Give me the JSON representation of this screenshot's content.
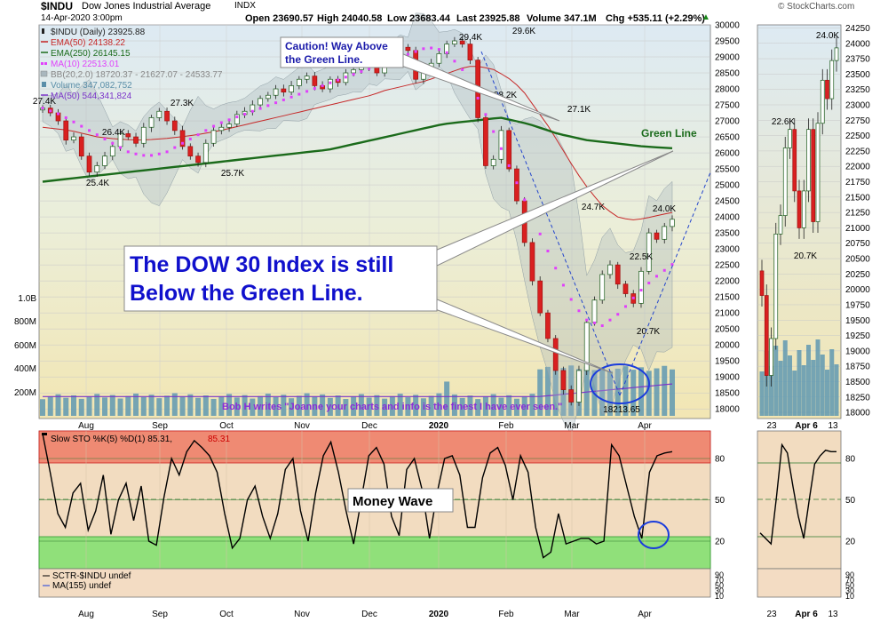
{
  "header": {
    "symbol": "$INDU",
    "name": "Dow Jones Industrial Average",
    "exchange": "INDX",
    "date": "14-Apr-2020 3:00pm",
    "open": "Open 23690.57",
    "high": "High 24040.58",
    "low": "Low 23683.44",
    "last": "Last 23925.88",
    "volume": "Volume 347.1M",
    "chg": "Chg +535.11 (+2.29%)",
    "chg_arrow": "▲",
    "brand": "© StockCharts.com"
  },
  "legend": [
    {
      "text": "$INDU (Daily) 23925.88",
      "color": "#222222",
      "swatch": "candle"
    },
    {
      "text": "EMA(50) 24138.22",
      "color": "#c62828",
      "swatch": "line"
    },
    {
      "text": "EMA(250) 26145.15",
      "color": "#1b6b1b",
      "swatch": "line"
    },
    {
      "text": "MA(10) 22513.01",
      "color": "#e040fb",
      "swatch": "dots"
    },
    {
      "text": "BB(20,2.0) 18720.37 - 21627.07 - 24533.77",
      "color": "#888888",
      "swatch": "band"
    },
    {
      "text": "Volume 347,082,752",
      "color": "#5a8ea8",
      "swatch": "bar"
    },
    {
      "text": "MA(50) 544,341,824",
      "color": "#7b35c9",
      "swatch": "line"
    }
  ],
  "chart_data": [
    {
      "type": "line",
      "title": "$INDU (Daily)",
      "y_ticks": [
        18000,
        18500,
        19000,
        19500,
        20000,
        20500,
        21000,
        21500,
        22000,
        22500,
        23000,
        23500,
        24000,
        24500,
        25000,
        25500,
        26000,
        26500,
        27000,
        27500,
        28000,
        28500,
        29000,
        29500,
        30000
      ],
      "ylim": [
        17700,
        30000
      ],
      "volume_ticks": [
        "200M",
        "400M",
        "600M",
        "800M",
        "1.0B"
      ],
      "x_labels": [
        "Aug",
        "Sep",
        "Oct",
        "Nov",
        "Dec",
        "2020",
        "Feb",
        "Mar",
        "Apr"
      ],
      "close_approx": [
        27400,
        27250,
        27000,
        26400,
        26500,
        25900,
        25400,
        25600,
        25900,
        26200,
        26600,
        26500,
        26300,
        26800,
        27100,
        27300,
        27000,
        26700,
        26200,
        25900,
        25700,
        26300,
        26700,
        26800,
        26900,
        27200,
        27300,
        27500,
        27700,
        27800,
        28000,
        27900,
        28100,
        28300,
        28400,
        28100,
        28000,
        28300,
        28200,
        28500,
        28600,
        28800,
        28700,
        28500,
        28900,
        29100,
        29300,
        29200,
        28300,
        28500,
        28800,
        29100,
        29400,
        29500,
        29400,
        28900,
        27100,
        25600,
        25800,
        26700,
        25500,
        24500,
        23200,
        22000,
        21000,
        20200,
        19200,
        18600,
        18214,
        19200,
        20700,
        21400,
        22200,
        22500,
        21900,
        21600,
        21300,
        22300,
        23500,
        23300,
        23700,
        23926
      ],
      "ema50_approx": [
        26800,
        26750,
        26700,
        26600,
        26500,
        26450,
        26420,
        26400,
        26420,
        26450,
        26500,
        26550,
        26620,
        26700,
        26800,
        26900,
        27000,
        27100,
        27200,
        27300,
        27400,
        27500,
        27600,
        27700,
        27800,
        27950,
        28050,
        28150,
        28250,
        28400,
        28550,
        28700,
        28700,
        28600,
        28350,
        28000,
        27400,
        26800,
        26100,
        25400,
        24800,
        24300,
        24000,
        23900,
        23950,
        24050,
        24138
      ],
      "ema250_approx": [
        25100,
        25200,
        25300,
        25400,
        25500,
        25600,
        25700,
        25800,
        25900,
        26000,
        26100,
        26300,
        26500,
        26700,
        26900,
        27000,
        27100,
        26900,
        26600,
        26400,
        26300,
        26200,
        26145
      ],
      "ma10_approx": [
        27400,
        27200,
        26900,
        26600,
        26300,
        26000,
        25900,
        26000,
        26300,
        26600,
        26900,
        27100,
        27300,
        27500,
        27700,
        27900,
        28100,
        28300,
        28500,
        28700,
        28900,
        29100,
        29300,
        29200,
        28600,
        27600,
        26400,
        25200,
        24000,
        22800,
        21600,
        20800,
        20600,
        21000,
        21600,
        22100,
        22513
      ],
      "annotations": [
        {
          "text": "27.4K",
          "value": 27400
        },
        {
          "text": "26.4K",
          "value": 26400
        },
        {
          "text": "25.4K",
          "value": 25400
        },
        {
          "text": "27.3K",
          "value": 27300
        },
        {
          "text": "25.7K",
          "value": 25700
        },
        {
          "text": "29.4K",
          "value": 29400
        },
        {
          "text": "29.6K",
          "value": 29600
        },
        {
          "text": "28.2K",
          "value": 28200
        },
        {
          "text": "27.1K",
          "value": 27100
        },
        {
          "text": "24.7K",
          "value": 24700
        },
        {
          "text": "24.0K",
          "value": 24000
        },
        {
          "text": "22.5K",
          "value": 22500
        },
        {
          "text": "20.7K",
          "value": 20700
        },
        {
          "text": "18213.65",
          "value": 18213.65
        }
      ],
      "callouts": {
        "caution": "Caution! Way Above the Green Line.",
        "caution_line1": "Caution! Way Above",
        "caution_line2": "the Green Line.",
        "green_line": "Green Line",
        "dow_line1": "The DOW 30 Index is still",
        "dow_line2": "Below the Green Line.",
        "quote": "Bob H writes \"Joanne your charts and info is the finest I have ever seen.\""
      }
    },
    {
      "type": "line",
      "title": "Slow STO %K(5) %D(1) 85.31, 85.31",
      "legend_label": "Slow STO %K(5) %D(1) 85.31,",
      "legend_value": "85.31",
      "y_ticks": [
        20,
        50,
        80
      ],
      "ylim": [
        0,
        100
      ],
      "overbought": 80,
      "oversold": 20,
      "values_approx": [
        98,
        70,
        40,
        30,
        55,
        62,
        28,
        42,
        68,
        25,
        50,
        62,
        35,
        60,
        20,
        17,
        52,
        80,
        68,
        85,
        93,
        88,
        82,
        70,
        40,
        15,
        22,
        50,
        60,
        38,
        22,
        40,
        72,
        80,
        42,
        20,
        55,
        82,
        92,
        70,
        42,
        18,
        50,
        82,
        88,
        76,
        38,
        24,
        72,
        80,
        58,
        22,
        55,
        80,
        82,
        68,
        30,
        30,
        66,
        84,
        88,
        75,
        50,
        82,
        70,
        30,
        8,
        12,
        40,
        18,
        20,
        22,
        22,
        18,
        20,
        90,
        82,
        60,
        38,
        22,
        70,
        82,
        84,
        85
      ],
      "callout": "Money Wave"
    },
    {
      "type": "line",
      "title": "SCTR-$INDU undef",
      "legend": [
        "SCTR-$INDU undef",
        "MA(155) undef"
      ],
      "y_ticks": [
        "90",
        "70",
        "50",
        "30",
        "10"
      ]
    }
  ],
  "side_panel": {
    "y_ticks": [
      18000,
      18250,
      18500,
      18750,
      19000,
      19250,
      19500,
      19750,
      20000,
      20250,
      20500,
      20750,
      21000,
      21250,
      21500,
      21750,
      22000,
      22250,
      22500,
      22750,
      23000,
      23250,
      23500,
      23750,
      24000,
      24250
    ],
    "ylim": [
      17900,
      24300
    ],
    "x_labels": [
      "23",
      "Apr 6",
      "13"
    ],
    "annotations": [
      {
        "text": "24.0K",
        "value": 24050
      },
      {
        "text": "22.6K",
        "value": 22600
      },
      {
        "text": "20.7K",
        "value": 20700
      }
    ],
    "closes_approx": [
      19900,
      18600,
      19200,
      20900,
      21200,
      22300,
      22600,
      21600,
      21000,
      21600,
      22600,
      21100,
      22700,
      23400,
      23100,
      23720,
      23926
    ],
    "sto_approx": [
      26,
      22,
      18,
      52,
      90,
      84,
      60,
      38,
      22,
      50,
      76,
      82,
      86,
      85,
      85
    ]
  }
}
